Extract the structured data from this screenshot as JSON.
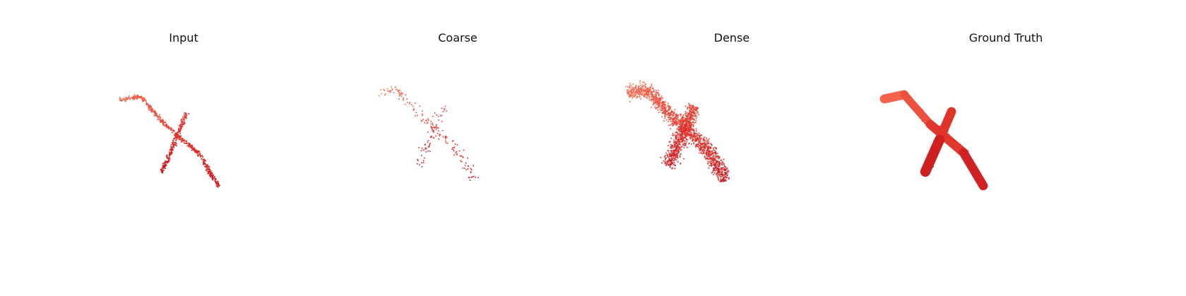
{
  "panels": [
    {
      "title": "Input",
      "style": "sparse-strokes"
    },
    {
      "title": "Coarse",
      "style": "scatter"
    },
    {
      "title": "Dense",
      "style": "dense-blob"
    },
    {
      "title": "Ground Truth",
      "style": "solid"
    }
  ],
  "colors": {
    "light": "#f4694e",
    "mid": "#e0342b",
    "dark": "#c01019"
  }
}
